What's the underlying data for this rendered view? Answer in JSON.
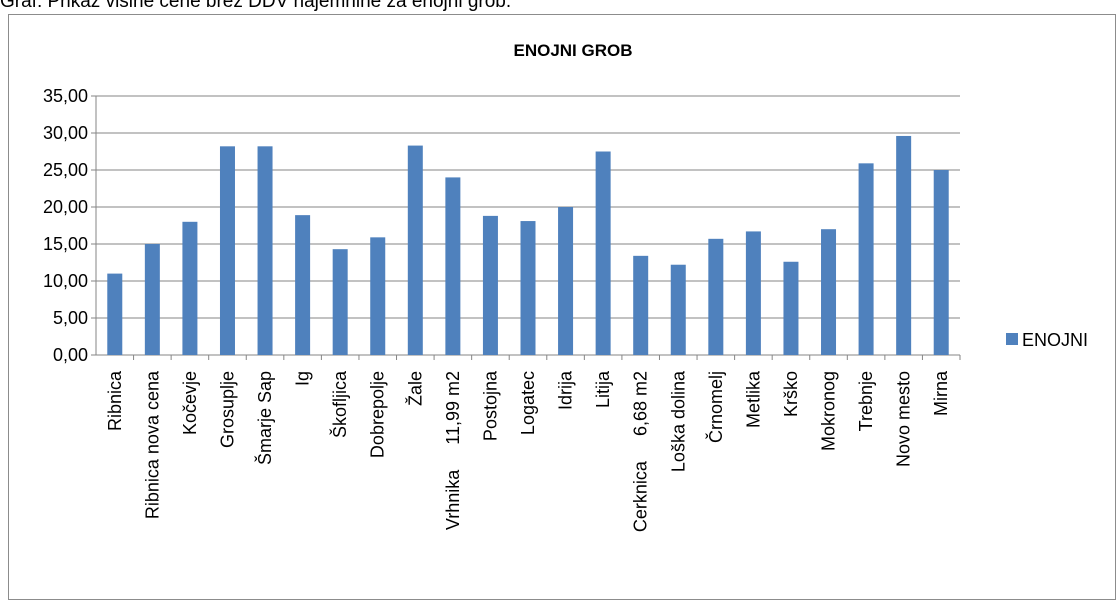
{
  "caption": "Graf: Prikaz višine cene brez DDV najemnine za enojni grob.",
  "chart_data": {
    "type": "bar",
    "title": "ENOJNI GROB",
    "xlabel": "",
    "ylabel": "",
    "ylim": [
      0,
      35
    ],
    "yticks": [
      "0,00",
      "5,00",
      "10,00",
      "15,00",
      "20,00",
      "25,00",
      "30,00",
      "35,00"
    ],
    "grid": true,
    "legend_position": "right",
    "bar_color": "#4f81bd",
    "categories": [
      "Ribnica",
      "Ribnica nova cena",
      "Kočevje",
      "Grosuplje",
      "Šmarje Sap",
      "Ig",
      "Škofljica",
      "Dobrepolje",
      "Žale",
      "Vrhnika     11,99 m2",
      "Postojna",
      "Logatec",
      "Idrija",
      "Litija",
      "Cerknica     6,68 m2",
      "Loška dolina",
      "Črnomelj",
      "Metlika",
      "Krško",
      "Mokronog",
      "Trebnje",
      "Novo mesto",
      "Mirna"
    ],
    "series": [
      {
        "name": "ENOJNI",
        "values": [
          11.0,
          15.0,
          18.0,
          28.2,
          28.2,
          18.9,
          14.3,
          15.9,
          28.3,
          24.0,
          18.8,
          18.1,
          20.0,
          27.5,
          13.4,
          12.2,
          15.7,
          16.7,
          12.6,
          17.0,
          25.9,
          29.6,
          25.0
        ]
      }
    ]
  }
}
